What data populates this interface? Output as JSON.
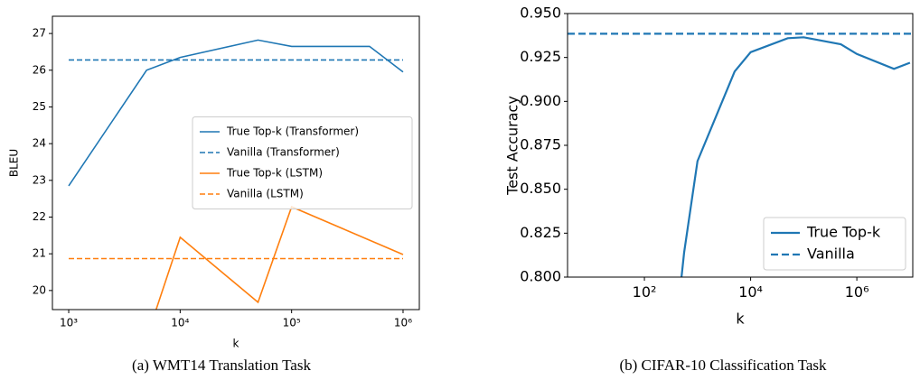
{
  "chart_data": [
    {
      "type": "line",
      "caption": "(a) WMT14 Translation Task",
      "xlabel": "k",
      "ylabel": "BLEU",
      "xscale": "log",
      "xlim": [
        714,
        1400000
      ],
      "ylim": [
        19.48,
        27.47
      ],
      "xticks": [
        {
          "value": 1000,
          "label": "10³"
        },
        {
          "value": 10000,
          "label": "10⁴"
        },
        {
          "value": 100000,
          "label": "10⁵"
        },
        {
          "value": 1000000,
          "label": "10⁶"
        }
      ],
      "yticks": [
        20,
        21,
        22,
        23,
        24,
        25,
        26,
        27
      ],
      "legend": "center right",
      "series": [
        {
          "name": "True Top-k (Transformer)",
          "color": "#1f77b4",
          "dash": false,
          "x": [
            1000,
            5000,
            10000,
            50000,
            100000,
            500000,
            1000000
          ],
          "values": [
            22.85,
            26.0,
            26.35,
            26.82,
            26.65,
            26.65,
            25.95
          ]
        },
        {
          "name": "Vanilla (Transformer)",
          "color": "#1f77b4",
          "dash": true,
          "x": [
            1000,
            1000000
          ],
          "values": [
            26.28,
            26.28
          ]
        },
        {
          "name": "True Top-k (LSTM)",
          "color": "#ff7f0e",
          "dash": false,
          "x": [
            5000,
            10000,
            50000,
            100000,
            1000000
          ],
          "values": [
            18.7,
            21.45,
            19.68,
            22.28,
            20.98
          ]
        },
        {
          "name": "Vanilla (LSTM)",
          "color": "#ff7f0e",
          "dash": true,
          "x": [
            1000,
            1000000
          ],
          "values": [
            20.87,
            20.87
          ]
        }
      ]
    },
    {
      "type": "line",
      "caption": "(b) CIFAR-10 Classification Task",
      "xlabel": "k",
      "ylabel": "Test Accuracy",
      "xscale": "log",
      "xlim": [
        3.57,
        11300000
      ],
      "ylim": [
        0.8,
        0.95
      ],
      "xticks": [
        {
          "value": 100,
          "label": "10²"
        },
        {
          "value": 10000,
          "label": "10⁴"
        },
        {
          "value": 1000000,
          "label": "10⁶"
        }
      ],
      "yticks": [
        {
          "value": 0.8,
          "label": "0.800"
        },
        {
          "value": 0.825,
          "label": "0.825"
        },
        {
          "value": 0.85,
          "label": "0.850"
        },
        {
          "value": 0.875,
          "label": "0.875"
        },
        {
          "value": 0.9,
          "label": "0.900"
        },
        {
          "value": 0.925,
          "label": "0.925"
        },
        {
          "value": 0.95,
          "label": "0.950"
        }
      ],
      "legend": "lower right",
      "series": [
        {
          "name": "True Top-k",
          "color": "#1f77b4",
          "dash": false,
          "x": [
            500,
            560,
            1000,
            5000,
            10000,
            50000,
            100000,
            500000,
            1000000,
            5000000,
            10000000
          ],
          "values": [
            0.8,
            0.814,
            0.866,
            0.917,
            0.928,
            0.936,
            0.9365,
            0.9325,
            0.927,
            0.9185,
            0.922
          ]
        },
        {
          "name": "Vanilla",
          "color": "#1f77b4",
          "dash": true,
          "x": [
            3.57,
            11300000
          ],
          "values": [
            0.9385,
            0.9385
          ]
        }
      ]
    }
  ]
}
